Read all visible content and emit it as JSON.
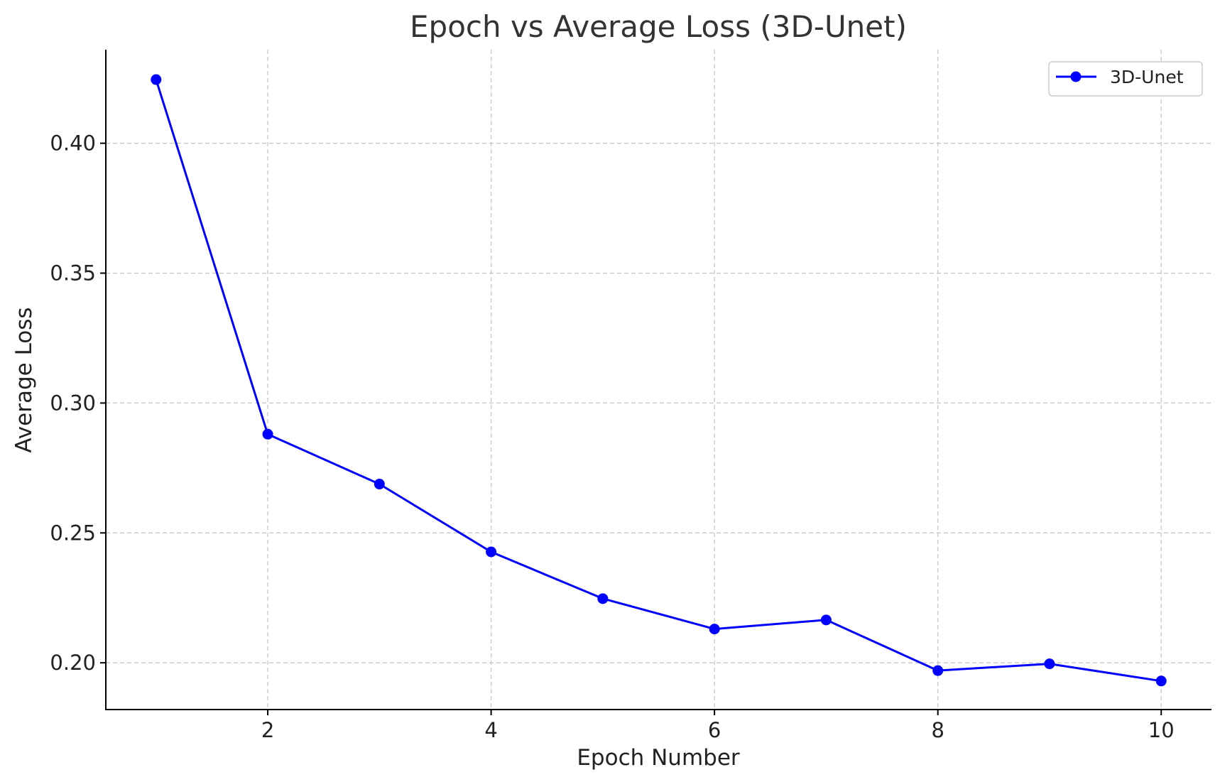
{
  "chart_data": {
    "type": "line",
    "title": "Epoch vs Average Loss (3D-Unet)",
    "xlabel": "Epoch Number",
    "ylabel": "Average Loss",
    "x": [
      1,
      2,
      3,
      4,
      5,
      6,
      7,
      8,
      9,
      10
    ],
    "series": [
      {
        "name": "3D-Unet",
        "color": "#0000ff",
        "marker": "circle",
        "values": [
          0.4245,
          0.288,
          0.2688,
          0.2427,
          0.2247,
          0.213,
          0.2165,
          0.197,
          0.1996,
          0.193
        ]
      }
    ],
    "xlim": [
      0.55,
      10.45
    ],
    "ylim": [
      0.182,
      0.436
    ],
    "x_ticks": [
      2,
      4,
      6,
      8,
      10
    ],
    "x_tick_labels": [
      "2",
      "4",
      "6",
      "8",
      "10"
    ],
    "y_ticks": [
      0.2,
      0.25,
      0.3,
      0.35,
      0.4
    ],
    "y_tick_labels": [
      "0.20",
      "0.25",
      "0.30",
      "0.35",
      "0.40"
    ],
    "grid": true,
    "legend_position": "top-right"
  }
}
